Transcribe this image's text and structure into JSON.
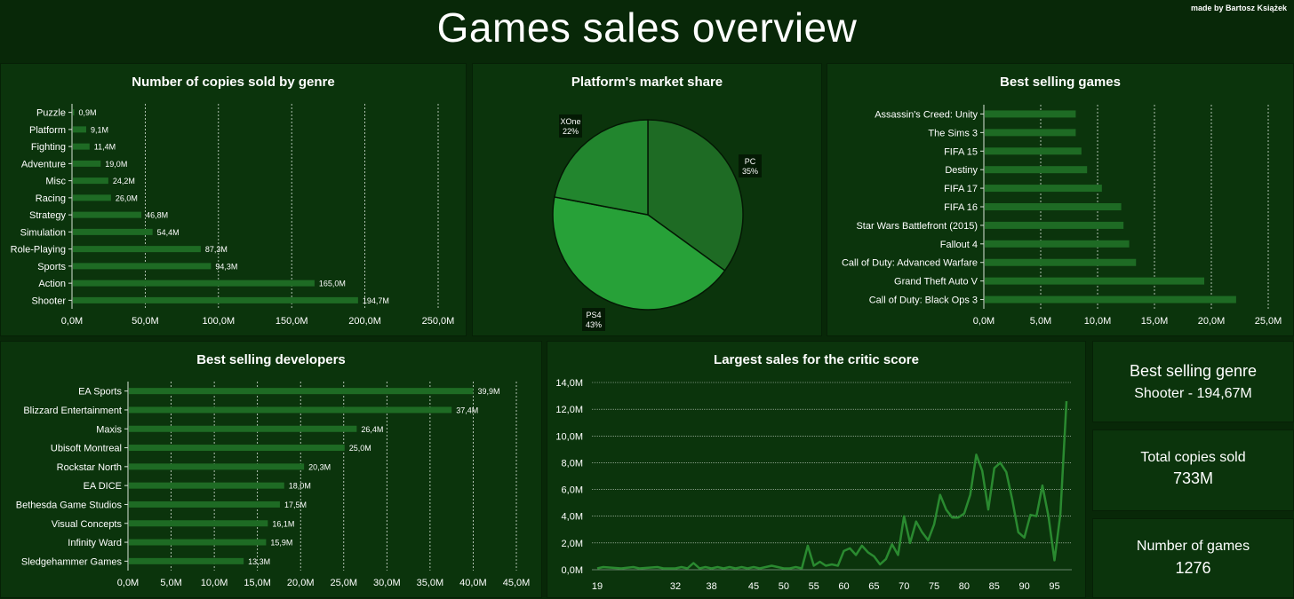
{
  "header": {
    "title": "Games sales overview",
    "credit": "made by Bartosz Książek"
  },
  "colors": {
    "background": "#082808",
    "panel": "#0b340c",
    "bar": "#1e6b24",
    "line": "#2a8a30",
    "pie": [
      "#1e6b24",
      "#27a138",
      "#22862e"
    ]
  },
  "panels": {
    "genre": {
      "title": "Number of copies sold by genre"
    },
    "platform": {
      "title": "Platform's market share"
    },
    "games": {
      "title": "Best selling games"
    },
    "developers": {
      "title": "Best selling developers"
    },
    "critic": {
      "title": "Largest sales for the critic score"
    }
  },
  "kpis": {
    "genre_title": "Best selling genre",
    "genre_value": "Shooter - 194,67M",
    "total_title": "Total copies sold",
    "total_value": "733M",
    "games_title": "Number of games",
    "games_value": "1276"
  },
  "chart_data": [
    {
      "id": "genre",
      "type": "bar",
      "orientation": "horizontal",
      "title": "Number of copies sold by genre",
      "categories": [
        "Puzzle",
        "Platform",
        "Fighting",
        "Adventure",
        "Misc",
        "Racing",
        "Strategy",
        "Simulation",
        "Role-Playing",
        "Sports",
        "Action",
        "Shooter"
      ],
      "values": [
        0.9,
        9.1,
        11.4,
        19.0,
        24.2,
        26.0,
        46.8,
        54.4,
        87.3,
        94.3,
        165.0,
        194.7
      ],
      "data_labels": [
        "0,9M",
        "9,1M",
        "11,4M",
        "19,0M",
        "24,2M",
        "26,0M",
        "46,8M",
        "54,4M",
        "87,3M",
        "94,3M",
        "165,0M",
        "194,7M"
      ],
      "xlim": [
        0,
        250
      ],
      "xticks": [
        0,
        50,
        100,
        150,
        200,
        250
      ],
      "xtick_labels": [
        "0,0M",
        "50,0M",
        "100,0M",
        "150,0M",
        "200,0M",
        "250,0M"
      ],
      "grid": true
    },
    {
      "id": "platform",
      "type": "pie",
      "title": "Platform's market share",
      "labels": [
        "PC",
        "PS4",
        "XOne"
      ],
      "values": [
        35,
        43,
        22
      ],
      "value_labels": [
        "35%",
        "43%",
        "22%"
      ]
    },
    {
      "id": "games",
      "type": "bar",
      "orientation": "horizontal",
      "title": "Best selling games",
      "categories": [
        "Assassin's Creed: Unity",
        "The Sims 3",
        "FIFA 15",
        "Destiny",
        "FIFA 17",
        "FIFA 16",
        "Star Wars Battlefront (2015)",
        "Fallout 4",
        "Call of Duty: Advanced Warfare",
        "Grand Theft Auto V",
        "Call of Duty: Black Ops 3"
      ],
      "values": [
        8.0,
        8.0,
        8.5,
        9.0,
        10.3,
        12.0,
        12.2,
        12.7,
        13.3,
        19.3,
        22.1
      ],
      "xlim": [
        0,
        25
      ],
      "xticks": [
        0,
        5,
        10,
        15,
        20,
        25
      ],
      "xtick_labels": [
        "0,0M",
        "5,0M",
        "10,0M",
        "15,0M",
        "20,0M",
        "25,0M"
      ],
      "grid": true
    },
    {
      "id": "developers",
      "type": "bar",
      "orientation": "horizontal",
      "title": "Best selling developers",
      "categories": [
        "EA Sports",
        "Blizzard Entertainment",
        "Maxis",
        "Ubisoft Montreal",
        "Rockstar North",
        "EA DICE",
        "Bethesda Game Studios",
        "Visual Concepts",
        "Infinity Ward",
        "Sledgehammer Games"
      ],
      "values": [
        39.9,
        37.4,
        26.4,
        25.0,
        20.3,
        18.0,
        17.5,
        16.1,
        15.9,
        13.3
      ],
      "data_labels": [
        "39,9M",
        "37,4M",
        "26,4M",
        "25,0M",
        "20,3M",
        "18,0M",
        "17,5M",
        "16,1M",
        "15,9M",
        "13,3M"
      ],
      "xlim": [
        0,
        45
      ],
      "xticks": [
        0,
        5,
        10,
        15,
        20,
        25,
        30,
        35,
        40,
        45
      ],
      "xtick_labels": [
        "0,0M",
        "5,0M",
        "10,0M",
        "15,0M",
        "20,0M",
        "25,0M",
        "30,0M",
        "35,0M",
        "40,0M",
        "45,0M"
      ],
      "grid": true
    },
    {
      "id": "critic",
      "type": "line",
      "title": "Largest sales for the critic score",
      "x": [
        19,
        20,
        23,
        25,
        26,
        29,
        30,
        32,
        33,
        34,
        35,
        36,
        37,
        38,
        39,
        40,
        41,
        42,
        43,
        44,
        45,
        46,
        47,
        48,
        49,
        50,
        51,
        52,
        53,
        54,
        55,
        56,
        57,
        58,
        59,
        60,
        61,
        62,
        63,
        64,
        65,
        66,
        67,
        68,
        69,
        70,
        71,
        72,
        73,
        74,
        75,
        76,
        77,
        78,
        79,
        80,
        81,
        82,
        83,
        84,
        85,
        86,
        87,
        88,
        89,
        90,
        91,
        92,
        93,
        94,
        95,
        96,
        97
      ],
      "y": [
        0.1,
        0.2,
        0.1,
        0.2,
        0.1,
        0.2,
        0.1,
        0.1,
        0.2,
        0.1,
        0.5,
        0.1,
        0.2,
        0.1,
        0.2,
        0.1,
        0.2,
        0.1,
        0.2,
        0.1,
        0.2,
        0.1,
        0.2,
        0.3,
        0.2,
        0.1,
        0.1,
        0.2,
        0.1,
        1.8,
        0.3,
        0.6,
        0.3,
        0.4,
        0.3,
        1.4,
        1.6,
        1.1,
        1.8,
        1.3,
        1.0,
        0.4,
        0.8,
        1.9,
        1.1,
        4.0,
        2.0,
        3.6,
        2.8,
        2.2,
        3.4,
        5.6,
        4.5,
        3.9,
        3.9,
        4.2,
        5.6,
        8.6,
        7.4,
        4.5,
        7.6,
        8.0,
        7.3,
        5.2,
        2.8,
        2.4,
        4.1,
        4.0,
        6.3,
        4.0,
        0.7,
        4.2,
        12.6
      ],
      "xtick_labels": [
        "19",
        "32",
        "38",
        "45",
        "50",
        "55",
        "60",
        "65",
        "70",
        "75",
        "80",
        "85",
        "90",
        "95"
      ],
      "ylim": [
        0,
        14
      ],
      "yticks": [
        0,
        2,
        4,
        6,
        8,
        10,
        12,
        14
      ],
      "ytick_labels": [
        "0,0M",
        "2,0M",
        "4,0M",
        "6,0M",
        "8,0M",
        "10,0M",
        "12,0M",
        "14,0M"
      ],
      "grid": true
    }
  ]
}
